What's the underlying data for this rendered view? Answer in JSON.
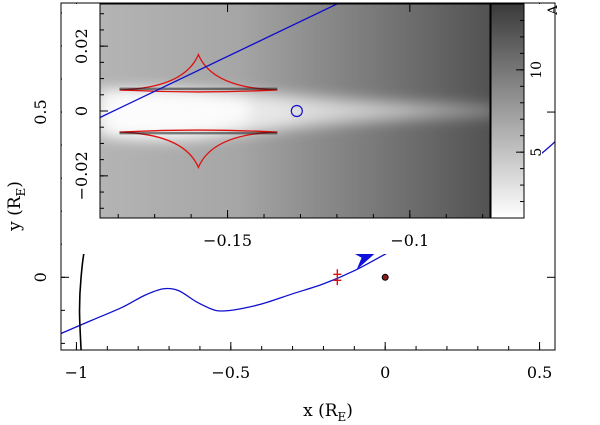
{
  "chart_data": [
    {
      "type": "line",
      "xlabel": "x (R",
      "xlabel_sub": "E",
      "xlabel_close": ")",
      "ylabel": "y (R",
      "ylabel_sub": "E",
      "ylabel_close": ")",
      "xlim": [
        -1.05,
        0.55
      ],
      "ylim": [
        -0.22,
        0.83
      ],
      "xticks": [
        -1,
        -0.5,
        0,
        0.5
      ],
      "xtick_labels": [
        "−1",
        "−0.5",
        "0",
        "0.5"
      ],
      "yticks": [
        0,
        0.5
      ],
      "ytick_labels": [
        "0",
        "0.5"
      ],
      "colors": {
        "trajectory": "#1010cc",
        "caustic": "#e01010",
        "arrow": "#1010dd",
        "curve": "#000000"
      },
      "series": [
        {
          "role": "source trajectory",
          "x": [
            -1.05,
            -0.95,
            -0.85,
            -0.78,
            -0.72,
            -0.67,
            -0.61,
            -0.55,
            -0.5,
            -0.44,
            -0.38,
            -0.3,
            -0.2,
            -0.1,
            0.0,
            0.1,
            0.2,
            0.3,
            0.4,
            0.5,
            0.55
          ],
          "y": [
            -0.17,
            -0.13,
            -0.09,
            -0.055,
            -0.035,
            -0.04,
            -0.075,
            -0.1,
            -0.1,
            -0.09,
            -0.075,
            -0.05,
            -0.02,
            0.02,
            0.07,
            0.12,
            0.17,
            0.23,
            0.3,
            0.37,
            0.41
          ]
        },
        {
          "role": "black arc",
          "x": [
            -0.985,
            -0.99,
            -0.985,
            -0.97,
            -0.93,
            -0.88
          ],
          "y": [
            -0.22,
            -0.1,
            0.0,
            0.1,
            0.2,
            0.3
          ]
        }
      ],
      "markers": [
        {
          "role": "direction arrow",
          "x": -0.07,
          "y": 0.05
        },
        {
          "role": "red caustic marker",
          "x": -0.155,
          "y": 0.0
        },
        {
          "role": "lens marker",
          "x": 0.0,
          "y": 0.0
        }
      ]
    },
    {
      "type": "heatmap",
      "xlim": [
        -0.185,
        -0.078
      ],
      "ylim": [
        -0.033,
        0.033
      ],
      "xticks": [
        -0.15,
        -0.1
      ],
      "xtick_labels": [
        "−0.15",
        "−0.1"
      ],
      "yticks": [
        -0.02,
        0,
        0.02
      ],
      "ytick_labels": [
        "−0.02",
        "0",
        "0.02"
      ],
      "colorbar_ticks": [
        5,
        10
      ],
      "colorbar_tick_labels": [
        "5",
        "10"
      ],
      "colorbar_label": "A",
      "colorbar_range": [
        1,
        14
      ],
      "caustic": {
        "cusp_x": -0.158,
        "cusp_y": [
          0.0174,
          -0.0174
        ],
        "fold_y": [
          0.0065,
          -0.0065
        ],
        "left_cusp_x": -0.178,
        "right_cusp_x": -0.138
      },
      "source_circle": {
        "x": -0.131,
        "y": 0.0
      },
      "trajectory": {
        "x": [
          -0.185,
          -0.12
        ],
        "y": [
          -0.002,
          0.033
        ]
      }
    }
  ]
}
